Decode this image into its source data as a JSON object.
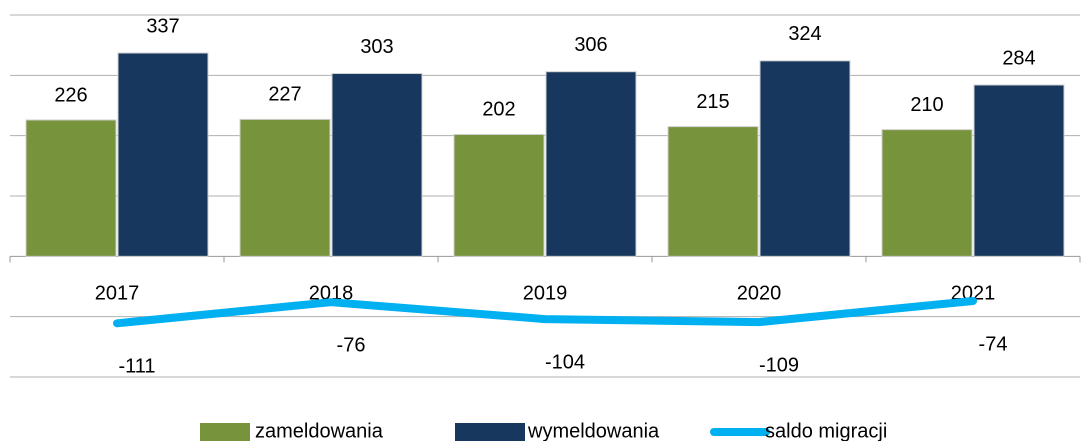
{
  "chart_data": {
    "type": "bar-line",
    "categories": [
      "2017",
      "2018",
      "2019",
      "2020",
      "2021"
    ],
    "series": [
      {
        "name": "zameldowania",
        "color": "#77933c",
        "type": "bar",
        "values": [
          226,
          227,
          202,
          215,
          210
        ]
      },
      {
        "name": "wymeldowania",
        "color": "#17375e",
        "type": "bar",
        "values": [
          337,
          303,
          306,
          324,
          284
        ]
      },
      {
        "name": "saldo migracji",
        "color": "#00b0f0",
        "type": "line",
        "values": [
          -111,
          -76,
          -104,
          -109,
          -74
        ]
      }
    ],
    "ylim": [
      -200,
      400
    ],
    "yticks": [
      -200,
      -100,
      0,
      100,
      200,
      300,
      400
    ],
    "grid": true,
    "legend": "bottom"
  }
}
